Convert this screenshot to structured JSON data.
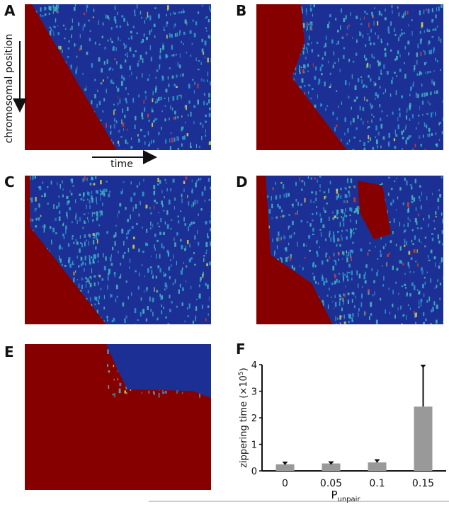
{
  "panels": {
    "labels": [
      "A",
      "B",
      "C",
      "D",
      "E"
    ],
    "y_arrow_label": "chromosomal position",
    "x_arrow_label": "time"
  },
  "chart_data": {
    "type": "bar",
    "panel_label": "F",
    "y_label": {
      "text": "zippering time (×10",
      "sup": "5",
      "tail": ")"
    },
    "x_label": {
      "text": "P",
      "sub": "unpair"
    },
    "categories": [
      "0",
      "0.05",
      "0.1",
      "0.15"
    ],
    "values": [
      0.25,
      0.28,
      0.32,
      2.42
    ],
    "errors": [
      0.1,
      0.08,
      0.12,
      1.58
    ],
    "color": "#999999",
    "ylim": [
      0,
      4
    ],
    "yticks": [
      0,
      1,
      2,
      3,
      4
    ]
  }
}
